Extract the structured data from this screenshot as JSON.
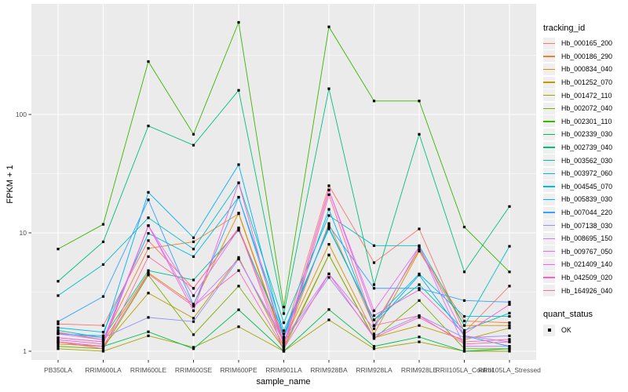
{
  "figure": {
    "background": "#FFFFFF",
    "panel_background": "#EBEBEB",
    "grid_color": "#FFFFFF",
    "tick_label_color": "#4D4D4D",
    "tick_mark_color": "#333333",
    "axis_title_color": "#000000",
    "point_color": "#000000"
  },
  "legend": {
    "tracking_title": "tracking_id",
    "quant_title": "quant_status",
    "quant_items": [
      {
        "label": "OK"
      }
    ]
  },
  "chart_data": {
    "type": "line",
    "title": "",
    "xlabel": "sample_name",
    "ylabel": "FPKM + 1",
    "y_scale": "log10",
    "y_ticks": [
      "1",
      "10",
      "100"
    ],
    "y_tick_values": [
      1,
      10,
      100
    ],
    "y_minor_values": [
      3.1623,
      31.623,
      316.23
    ],
    "ylim": [
      0.85,
      860
    ],
    "legend_position": "right",
    "grid": true,
    "marker": "black-square",
    "categories": [
      "PB350LA",
      "RRIM600LA",
      "RRIM600LE",
      "RRIM600SE",
      "RRIM600PE",
      "RRIM901LA",
      "RRIM928BA",
      "RRIM928LA",
      "RRIM928LE",
      "RRII105LA_Control",
      "RRII105LA_Stressed"
    ],
    "series": [
      {
        "name": "Hb_000165_200",
        "color": "#F8766D",
        "values": [
          1.7,
          1.65,
          8.6,
          3.4,
          11.0,
          1.3,
          25.0,
          5.6,
          10.8,
          1.45,
          3.55
        ]
      },
      {
        "name": "Hb_000186_290",
        "color": "#EA8331",
        "values": [
          1.45,
          1.25,
          7.4,
          8.4,
          14.5,
          1.15,
          12.0,
          1.65,
          7.2,
          1.8,
          1.74
        ]
      },
      {
        "name": "Hb_000834_040",
        "color": "#D89000",
        "values": [
          1.3,
          1.2,
          4.6,
          2.5,
          14.7,
          1.2,
          8.0,
          1.4,
          7.0,
          1.65,
          1.65
        ]
      },
      {
        "name": "Hb_001252_070",
        "color": "#C09B00",
        "values": [
          1.15,
          1.1,
          3.1,
          1.9,
          6.2,
          1.1,
          6.5,
          1.3,
          1.65,
          1.25,
          1.57
        ]
      },
      {
        "name": "Hb_001472_110",
        "color": "#A3A500",
        "values": [
          1.05,
          1.0,
          1.35,
          1.08,
          1.61,
          1.0,
          1.84,
          1.05,
          1.2,
          1.0,
          1.0
        ]
      },
      {
        "name": "Hb_002072_040",
        "color": "#7CAE00",
        "values": [
          1.1,
          1.05,
          4.4,
          1.38,
          3.55,
          1.05,
          6.5,
          1.28,
          2.68,
          1.05,
          1.05
        ]
      },
      {
        "name": "Hb_002301_110",
        "color": "#39B600",
        "values": [
          7.3,
          11.8,
          280,
          68,
          600,
          2.36,
          550,
          130,
          130,
          11.2,
          4.68
        ]
      },
      {
        "name": "Hb_002339_030",
        "color": "#00BB4E",
        "values": [
          1.2,
          1.1,
          1.46,
          1.05,
          2.24,
          1.0,
          2.25,
          1.1,
          1.32,
          1.0,
          1.05
        ]
      },
      {
        "name": "Hb_002739_040",
        "color": "#00BF7D",
        "values": [
          3.9,
          8.4,
          80,
          55,
          160,
          2.08,
          165,
          3.65,
          68,
          4.68,
          16.7
        ]
      },
      {
        "name": "Hb_003562_030",
        "color": "#00C1A3",
        "values": [
          1.5,
          1.3,
          4.8,
          4.0,
          10.5,
          1.4,
          11.0,
          1.84,
          3.65,
          1.5,
          2.1
        ]
      },
      {
        "name": "Hb_003972_060",
        "color": "#00BFC4",
        "values": [
          2.95,
          5.4,
          13.4,
          7.3,
          26.5,
          1.74,
          14.0,
          7.8,
          7.8,
          1.65,
          7.7
        ]
      },
      {
        "name": "Hb_004545_070",
        "color": "#00BAE0",
        "values": [
          1.58,
          1.45,
          9.9,
          6.3,
          20.0,
          1.49,
          10.8,
          1.84,
          4.5,
          1.97,
          1.97
        ]
      },
      {
        "name": "Hb_005839_030",
        "color": "#00B0F6",
        "values": [
          1.4,
          1.35,
          22.0,
          9.1,
          37.7,
          1.32,
          15.8,
          1.65,
          4.4,
          1.35,
          1.1
        ]
      },
      {
        "name": "Hb_007044_220",
        "color": "#35A2FF",
        "values": [
          1.78,
          2.9,
          19.0,
          2.45,
          20.0,
          1.3,
          11.5,
          3.4,
          3.4,
          2.68,
          2.6
        ]
      },
      {
        "name": "Hb_007138_030",
        "color": "#9590FF",
        "values": [
          1.42,
          1.3,
          1.93,
          1.78,
          6.0,
          1.2,
          4.2,
          1.35,
          2.0,
          1.3,
          1.35
        ]
      },
      {
        "name": "Hb_008695_150",
        "color": "#C77CFF",
        "values": [
          1.4,
          1.25,
          11.5,
          2.4,
          6.0,
          1.25,
          4.5,
          1.55,
          7.6,
          1.1,
          1.1
        ]
      },
      {
        "name": "Hb_009767_050",
        "color": "#E76BF3",
        "values": [
          1.3,
          1.2,
          11.5,
          2.95,
          10.8,
          1.15,
          23.0,
          2.2,
          7.6,
          1.35,
          1.2
        ]
      },
      {
        "name": "Hb_021409_140",
        "color": "#FA62DB",
        "values": [
          1.25,
          1.15,
          11.5,
          2.2,
          26.5,
          1.1,
          23.0,
          2.0,
          3.3,
          1.4,
          2.48
        ]
      },
      {
        "name": "Hb_042509_020",
        "color": "#FF62BC",
        "values": [
          1.2,
          1.1,
          4.5,
          2.4,
          4.8,
          1.05,
          4.5,
          1.3,
          1.93,
          1.2,
          1.26
        ]
      },
      {
        "name": "Hb_164926_040",
        "color": "#FF6A98",
        "values": [
          1.2,
          1.05,
          6.3,
          3.4,
          11.0,
          1.0,
          21.0,
          1.65,
          2.0,
          1.15,
          1.2
        ]
      }
    ]
  }
}
